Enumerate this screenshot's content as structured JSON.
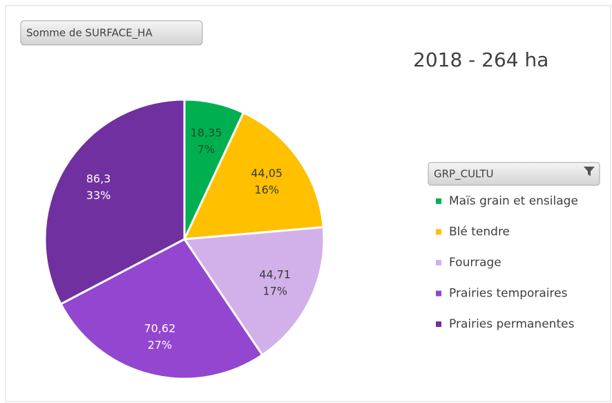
{
  "chart_data": {
    "type": "pie",
    "title": "2018 - 264 ha",
    "field_button": "Somme de SURFACE_HA",
    "legend_title": "GRP_CULTU",
    "categories": [
      "Maïs grain et ensilage",
      "Blé tendre",
      "Fourrage",
      "Prairies temporaires",
      "Prairies permanentes"
    ],
    "values": [
      18.35,
      44.05,
      44.71,
      70.62,
      86.3
    ],
    "value_labels": [
      "18,35",
      "44,05",
      "44,71",
      "70,62",
      "86,3"
    ],
    "percent_labels": [
      "7%",
      "16%",
      "17%",
      "27%",
      "33%"
    ],
    "colors": [
      "#00b050",
      "#ffc000",
      "#d2b1ea",
      "#9346cf",
      "#7030a0"
    ],
    "label_colors": [
      "#1f4e2a",
      "#3a3a3a",
      "#3a3a3a",
      "#ffffff",
      "#ffffff"
    ],
    "legend": "right"
  }
}
